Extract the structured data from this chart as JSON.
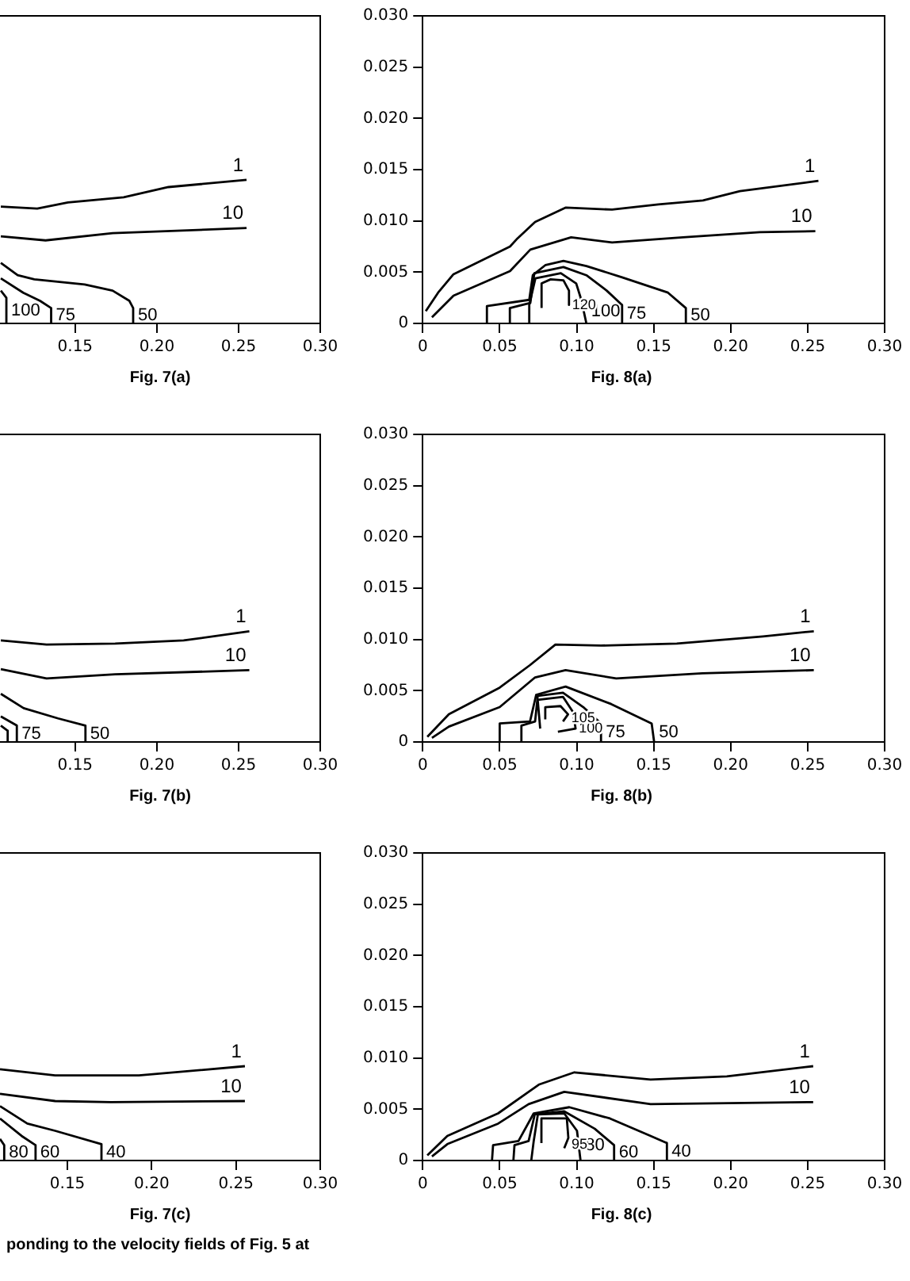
{
  "chart_data": [
    {
      "type": "line",
      "title": "Fig. 7(a)",
      "xlim": [
        0.104,
        0.3
      ],
      "xticks": [
        0.15,
        {
          "value": 0.2,
          "label": "0.20"
        },
        0.25,
        {
          "value": 0.3,
          "label": "0.30"
        }
      ],
      "ylim": [
        0,
        0.03
      ],
      "tick_labels": "x",
      "grid": false,
      "legend": false,
      "marker": "none",
      "series": [
        {
          "name": "1",
          "color": "#000000",
          "x": [
            0.1045,
            0.1268,
            0.1456,
            0.1797,
            0.2071,
            0.2549
          ],
          "values": [
            0.0114,
            0.0112,
            0.0118,
            0.0123,
            0.0133,
            0.014
          ]
        },
        {
          "name": "10",
          "color": "#000000",
          "x": [
            0.1045,
            0.1319,
            0.1729,
            0.2549
          ],
          "values": [
            0.0085,
            0.0081,
            0.0088,
            0.0093
          ]
        },
        {
          "name": "50",
          "color": "#000000",
          "x": [
            0.1045,
            0.1148,
            0.125,
            0.1558,
            0.1729,
            0.1832,
            0.1855,
            0.1855
          ],
          "values": [
            0.0059,
            0.0047,
            0.0043,
            0.0038,
            0.0032,
            0.0022,
            0.0015,
            0
          ]
        },
        {
          "name": "75",
          "color": "#000000",
          "x": [
            0.1045,
            0.1182,
            0.1285,
            0.1353,
            0.1353
          ],
          "values": [
            0.0044,
            0.003,
            0.0022,
            0.0015,
            0
          ]
        },
        {
          "name": "100",
          "color": "#000000",
          "x": [
            0.1045,
            0.1079,
            0.1079
          ],
          "values": [
            0.0032,
            0.0025,
            0
          ]
        }
      ]
    },
    {
      "type": "line",
      "title": "Fig. 8(a)",
      "xlim": [
        0,
        0.3
      ],
      "xticks": [
        0,
        0.05,
        {
          "value": 0.1,
          "label": "0.10"
        },
        0.15,
        {
          "value": 0.2,
          "label": "0.20"
        },
        0.25,
        {
          "value": 0.3,
          "label": "0.30"
        }
      ],
      "ylim": [
        0,
        0.03
      ],
      "yticks": [
        0,
        0.005,
        {
          "value": 0.01,
          "label": "0.010"
        },
        0.015,
        {
          "value": 0.02,
          "label": "0.020"
        },
        0.025,
        {
          "value": 0.03,
          "label": "0.030"
        }
      ],
      "grid": false,
      "legend": false,
      "marker": "none",
      "series": [
        {
          "name": "1",
          "color": "#000000",
          "x": [
            0.002,
            0.01,
            0.02,
            0.0567,
            0.0616,
            0.073,
            0.093,
            0.123,
            0.153,
            0.182,
            0.206,
            0.257
          ],
          "values": [
            0.0012,
            0.003,
            0.0048,
            0.0075,
            0.0083,
            0.0099,
            0.0113,
            0.0111,
            0.0116,
            0.012,
            0.0129,
            0.0139
          ]
        },
        {
          "name": "10",
          "color": "#000000",
          "x": [
            0.006,
            0.02,
            0.0567,
            0.0699,
            0.0964,
            0.123,
            0.169,
            0.219,
            0.255
          ],
          "values": [
            0.0006,
            0.0027,
            0.0051,
            0.0072,
            0.0084,
            0.0079,
            0.0084,
            0.0089,
            0.009
          ]
        },
        {
          "name": "50",
          "color": "#000000",
          "x": [
            0.0417,
            0.0417,
            0.0692,
            0.0715,
            0.0798,
            0.0914,
            0.1063,
            0.1295,
            0.1593,
            0.1709,
            0.1709
          ],
          "values": [
            0,
            0.0017,
            0.0023,
            0.0047,
            0.0057,
            0.0061,
            0.0056,
            0.0045,
            0.003,
            0.0015,
            0
          ]
        },
        {
          "name": "75",
          "color": "#000000",
          "x": [
            0.0566,
            0.0566,
            0.0699,
            0.0725,
            0.0914,
            0.1063,
            0.1195,
            0.1295,
            0.1295
          ],
          "values": [
            0,
            0.0015,
            0.002,
            0.0049,
            0.0055,
            0.0047,
            0.0032,
            0.0018,
            0
          ]
        },
        {
          "name": "100",
          "color": "#000000",
          "x": [
            0.0692,
            0.0692,
            0.0732,
            0.0897,
            0.0997,
            0.103,
            0.1063
          ],
          "values": [
            0,
            0.0018,
            0.0044,
            0.0049,
            0.0039,
            0.0023,
            0
          ]
        },
        {
          "name": "120",
          "color": "#000000",
          "x": [
            0.0772,
            0.0772,
            0.0831,
            0.0914,
            0.095,
            0.095
          ],
          "values": [
            0.0015,
            0.0039,
            0.0043,
            0.0042,
            0.0032,
            0.0018
          ]
        }
      ]
    },
    {
      "type": "line",
      "title": "Fig. 7(b)",
      "xlim": [
        0.104,
        0.3
      ],
      "xticks": [
        0.15,
        {
          "value": 0.2,
          "label": "0.20"
        },
        0.25,
        {
          "value": 0.3,
          "label": "0.30"
        }
      ],
      "ylim": [
        0,
        0.03
      ],
      "tick_labels": "x",
      "grid": false,
      "legend": false,
      "marker": "none",
      "series": [
        {
          "name": "1",
          "color": "#000000",
          "x": [
            0.1045,
            0.1325,
            0.1745,
            0.2164,
            0.2566
          ],
          "values": [
            0.0099,
            0.0095,
            0.0096,
            0.0099,
            0.0108
          ]
        },
        {
          "name": "10",
          "color": "#000000",
          "x": [
            0.1045,
            0.1325,
            0.1745,
            0.2566
          ],
          "values": [
            0.0071,
            0.0062,
            0.0066,
            0.007
          ]
        },
        {
          "name": "50",
          "color": "#000000",
          "x": [
            0.1045,
            0.1185,
            0.1395,
            0.1563,
            0.1563
          ],
          "values": [
            0.0047,
            0.0033,
            0.0023,
            0.0016,
            0
          ]
        },
        {
          "name": "75",
          "color": "#000000",
          "x": [
            0.1045,
            0.1143,
            0.1143
          ],
          "values": [
            0.0025,
            0.0016,
            0
          ]
        },
        {
          "color": "#000000",
          "x": [
            0.1045,
            0.1087,
            0.1087
          ],
          "values": [
            0.0016,
            0.0011,
            0
          ]
        }
      ]
    },
    {
      "type": "line",
      "title": "Fig. 8(b)",
      "xlim": [
        0,
        0.3
      ],
      "xticks": [
        0,
        0.05,
        {
          "value": 0.1,
          "label": "0.10"
        },
        0.15,
        {
          "value": 0.2,
          "label": "0.20"
        },
        0.25,
        {
          "value": 0.3,
          "label": "0.30"
        }
      ],
      "ylim": [
        0,
        0.03
      ],
      "yticks": [
        0,
        0.005,
        {
          "value": 0.01,
          "label": "0.010"
        },
        0.015,
        {
          "value": 0.02,
          "label": "0.020"
        },
        0.025,
        {
          "value": 0.03,
          "label": "0.030"
        }
      ],
      "grid": false,
      "legend": false,
      "marker": "none",
      "series": [
        {
          "name": "1",
          "color": "#000000",
          "x": [
            0.003,
            0.017,
            0.05,
            0.0697,
            0.0862,
            0.1158,
            0.165,
            0.221,
            0.254
          ],
          "values": [
            0.0005,
            0.0027,
            0.0053,
            0.0075,
            0.0095,
            0.0094,
            0.0096,
            0.0103,
            0.0108
          ]
        },
        {
          "name": "10",
          "color": "#000000",
          "x": [
            0.006,
            0.017,
            0.05,
            0.073,
            0.0928,
            0.1257,
            0.1816,
            0.254
          ],
          "values": [
            0.0004,
            0.0015,
            0.0034,
            0.0063,
            0.007,
            0.0062,
            0.0067,
            0.007
          ]
        },
        {
          "name": "50",
          "color": "#000000",
          "x": [
            0.05,
            0.05,
            0.0697,
            0.0737,
            0.0928,
            0.1224,
            0.1487,
            0.1503
          ],
          "values": [
            0,
            0.0018,
            0.002,
            0.0046,
            0.0054,
            0.0037,
            0.0018,
            0
          ]
        },
        {
          "name": "75",
          "color": "#000000",
          "x": [
            0.0641,
            0.0641,
            0.073,
            0.0747,
            0.0911,
            0.1043,
            0.1158,
            0.1158
          ],
          "values": [
            0,
            0.0016,
            0.002,
            0.0045,
            0.0048,
            0.0034,
            0.0018,
            0
          ]
        },
        {
          "name": "100",
          "color": "#000000",
          "x": [
            0.0763,
            0.0747,
            0.0911,
            0.0977,
            0.0993,
            0.0878
          ],
          "values": [
            0.0013,
            0.0041,
            0.0044,
            0.0029,
            0.0013,
            0.001
          ]
        },
        {
          "name": "105",
          "color": "#000000",
          "x": [
            0.0796,
            0.0796,
            0.0895,
            0.0944,
            0.0911
          ],
          "values": [
            0.0022,
            0.0034,
            0.0035,
            0.0027,
            0.002
          ]
        }
      ]
    },
    {
      "type": "line",
      "title": "Fig. 7(c)",
      "xlim": [
        0.11,
        0.3
      ],
      "xticks": [
        0.15,
        {
          "value": 0.2,
          "label": "0.20"
        },
        0.25,
        {
          "value": 0.3,
          "label": "0.30"
        }
      ],
      "ylim": [
        0,
        0.03
      ],
      "tick_labels": "x",
      "grid": false,
      "legend": false,
      "marker": "none",
      "annotations": [
        "ponding to the velocity fields of Fig. 5 at"
      ],
      "series": [
        {
          "name": "1",
          "color": "#000000",
          "x": [
            0.11,
            0.1427,
            0.1924,
            0.2553
          ],
          "values": [
            0.0089,
            0.0083,
            0.0083,
            0.0092
          ]
        },
        {
          "name": "10",
          "color": "#000000",
          "x": [
            0.11,
            0.1427,
            0.1758,
            0.2553
          ],
          "values": [
            0.0065,
            0.0058,
            0.0057,
            0.0058
          ]
        },
        {
          "name": "40",
          "color": "#000000",
          "x": [
            0.11,
            0.1262,
            0.1427,
            0.1702,
            0.1702
          ],
          "values": [
            0.0053,
            0.0036,
            0.0029,
            0.0016,
            0
          ]
        },
        {
          "name": "60",
          "color": "#000000",
          "x": [
            0.11,
            0.1228,
            0.1311,
            0.1311
          ],
          "values": [
            0.0041,
            0.0024,
            0.0015,
            0
          ]
        },
        {
          "name": "80",
          "color": "#000000",
          "x": [
            0.11,
            0.1125,
            0.1125
          ],
          "values": [
            0.0021,
            0.0015,
            0
          ]
        }
      ]
    },
    {
      "type": "line",
      "title": "Fig. 8(c)",
      "xlim": [
        0,
        0.3
      ],
      "xticks": [
        0,
        0.05,
        {
          "value": 0.1,
          "label": "0.10"
        },
        0.15,
        {
          "value": 0.2,
          "label": "0.20"
        },
        0.25,
        {
          "value": 0.3,
          "label": "0.30"
        }
      ],
      "ylim": [
        0,
        0.03
      ],
      "yticks": [
        0,
        0.005,
        {
          "value": 0.01,
          "label": "0.010"
        },
        0.015,
        {
          "value": 0.02,
          "label": "0.020"
        },
        0.025,
        {
          "value": 0.03,
          "label": "0.030"
        }
      ],
      "grid": false,
      "legend": false,
      "marker": "none",
      "series": [
        {
          "name": "1",
          "color": "#000000",
          "x": [
            0.003,
            0.016,
            0.049,
            0.0688,
            0.0754,
            0.0985,
            0.148,
            0.1975,
            0.2536
          ],
          "values": [
            0.0005,
            0.0024,
            0.0046,
            0.0067,
            0.0074,
            0.0086,
            0.0079,
            0.0082,
            0.0092
          ]
        },
        {
          "name": "10",
          "color": "#000000",
          "x": [
            0.006,
            0.016,
            0.049,
            0.0688,
            0.0919,
            0.148,
            0.2536
          ],
          "values": [
            0.0004,
            0.0016,
            0.0036,
            0.0055,
            0.0067,
            0.0055,
            0.0057
          ]
        },
        {
          "name": "40",
          "color": "#000000",
          "x": [
            0.045,
            0.0457,
            0.0622,
            0.0721,
            0.0952,
            0.1216,
            0.148,
            0.1586,
            0.1586
          ],
          "values": [
            0,
            0.0015,
            0.0019,
            0.0046,
            0.0052,
            0.0041,
            0.0024,
            0.0017,
            0
          ]
        },
        {
          "name": "60",
          "color": "#000000",
          "x": [
            0.0589,
            0.0596,
            0.0688,
            0.0728,
            0.0919,
            0.1117,
            0.1243,
            0.1243
          ],
          "values": [
            0,
            0.0015,
            0.0019,
            0.0045,
            0.0048,
            0.0031,
            0.0015,
            0
          ]
        },
        {
          "name": "80",
          "color": "#000000",
          "x": [
            0.0705,
            0.0721,
            0.0748,
            0.0919,
            0.1002,
            0.1025
          ],
          "values": [
            0,
            0.0019,
            0.0045,
            0.0046,
            0.0029,
            0
          ]
        },
        {
          "name": "95",
          "color": "#000000",
          "x": [
            0.0771,
            0.0771,
            0.0936,
            0.0946,
            0.0919
          ],
          "values": [
            0.0017,
            0.0041,
            0.0041,
            0.0022,
            0.0012
          ]
        }
      ]
    }
  ]
}
